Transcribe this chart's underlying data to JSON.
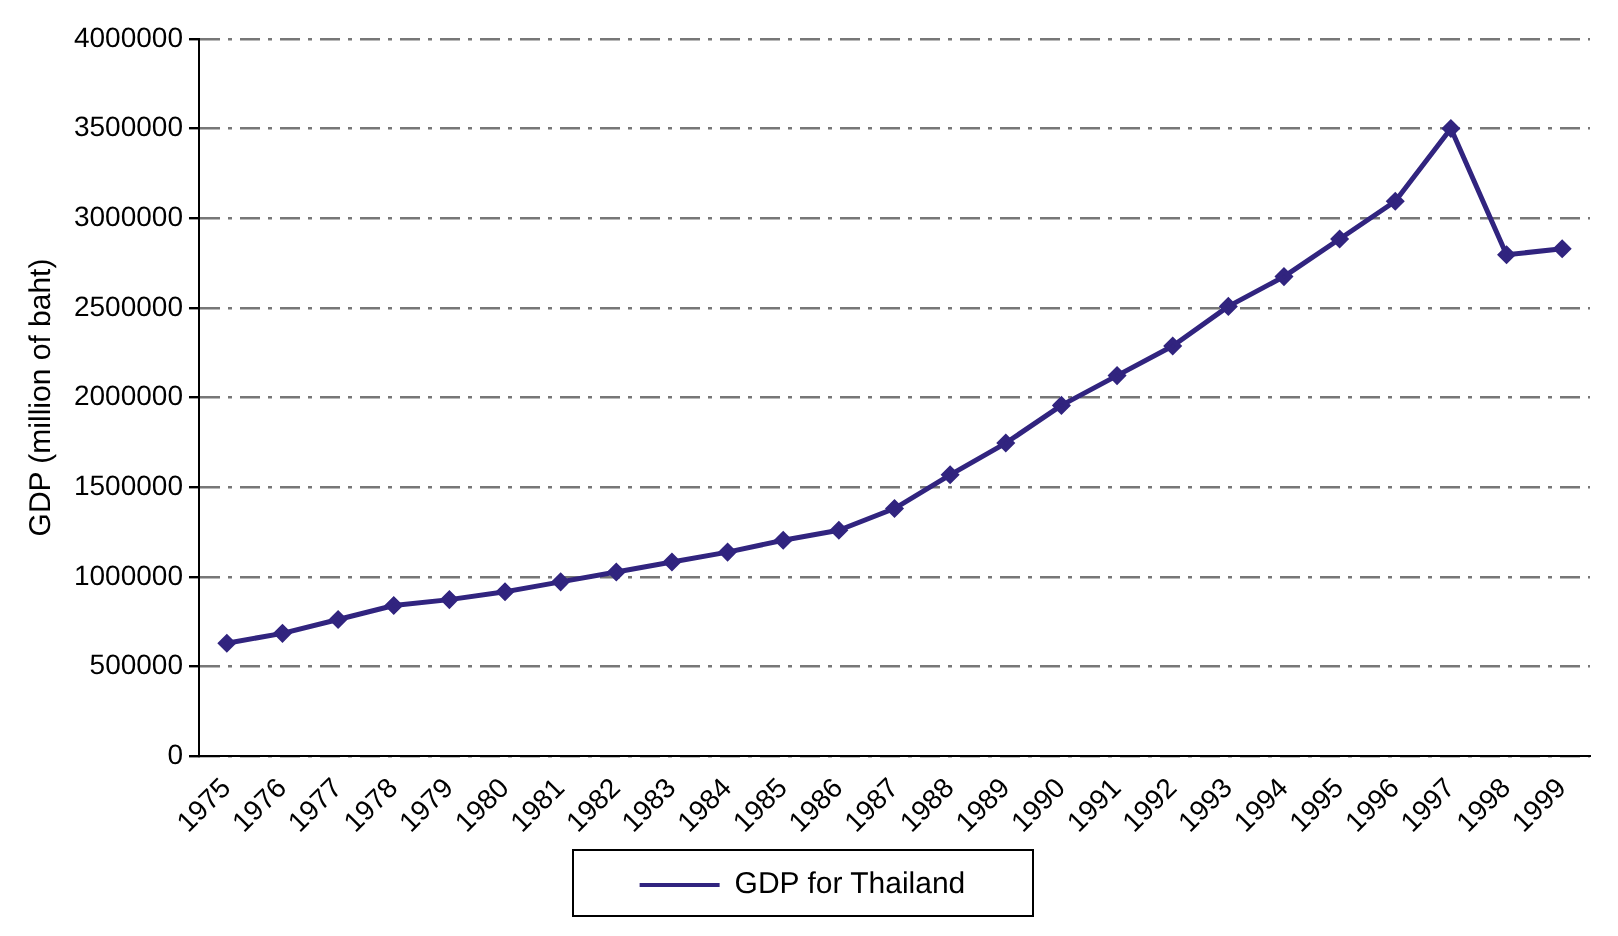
{
  "chart_data": {
    "type": "line",
    "ylabel": "GDP (million of baht)",
    "categories": [
      "1975",
      "1976",
      "1977",
      "1978",
      "1979",
      "1980",
      "1981",
      "1982",
      "1983",
      "1984",
      "1985",
      "1986",
      "1987",
      "1988",
      "1989",
      "1990",
      "1991",
      "1992",
      "1993",
      "1994",
      "1995",
      "1996",
      "1997",
      "1998",
      "1999"
    ],
    "series": [
      {
        "name": "GDP for Thailand",
        "color": "#31247f",
        "values": [
          630000,
          685000,
          762000,
          840000,
          873000,
          917000,
          972000,
          1027000,
          1083000,
          1138000,
          1204000,
          1260000,
          1381000,
          1569000,
          1746000,
          1956000,
          2122000,
          2287000,
          2508000,
          2674000,
          2884000,
          3094000,
          3500000,
          2796000,
          2829000
        ]
      }
    ],
    "ylim": [
      0,
      4000000
    ],
    "yticks": [
      0,
      500000,
      1000000,
      1500000,
      2000000,
      2500000,
      3000000,
      3500000,
      4000000
    ],
    "grid": "y",
    "legend": "bottom",
    "marker": "diamond",
    "line_style": "solid"
  }
}
